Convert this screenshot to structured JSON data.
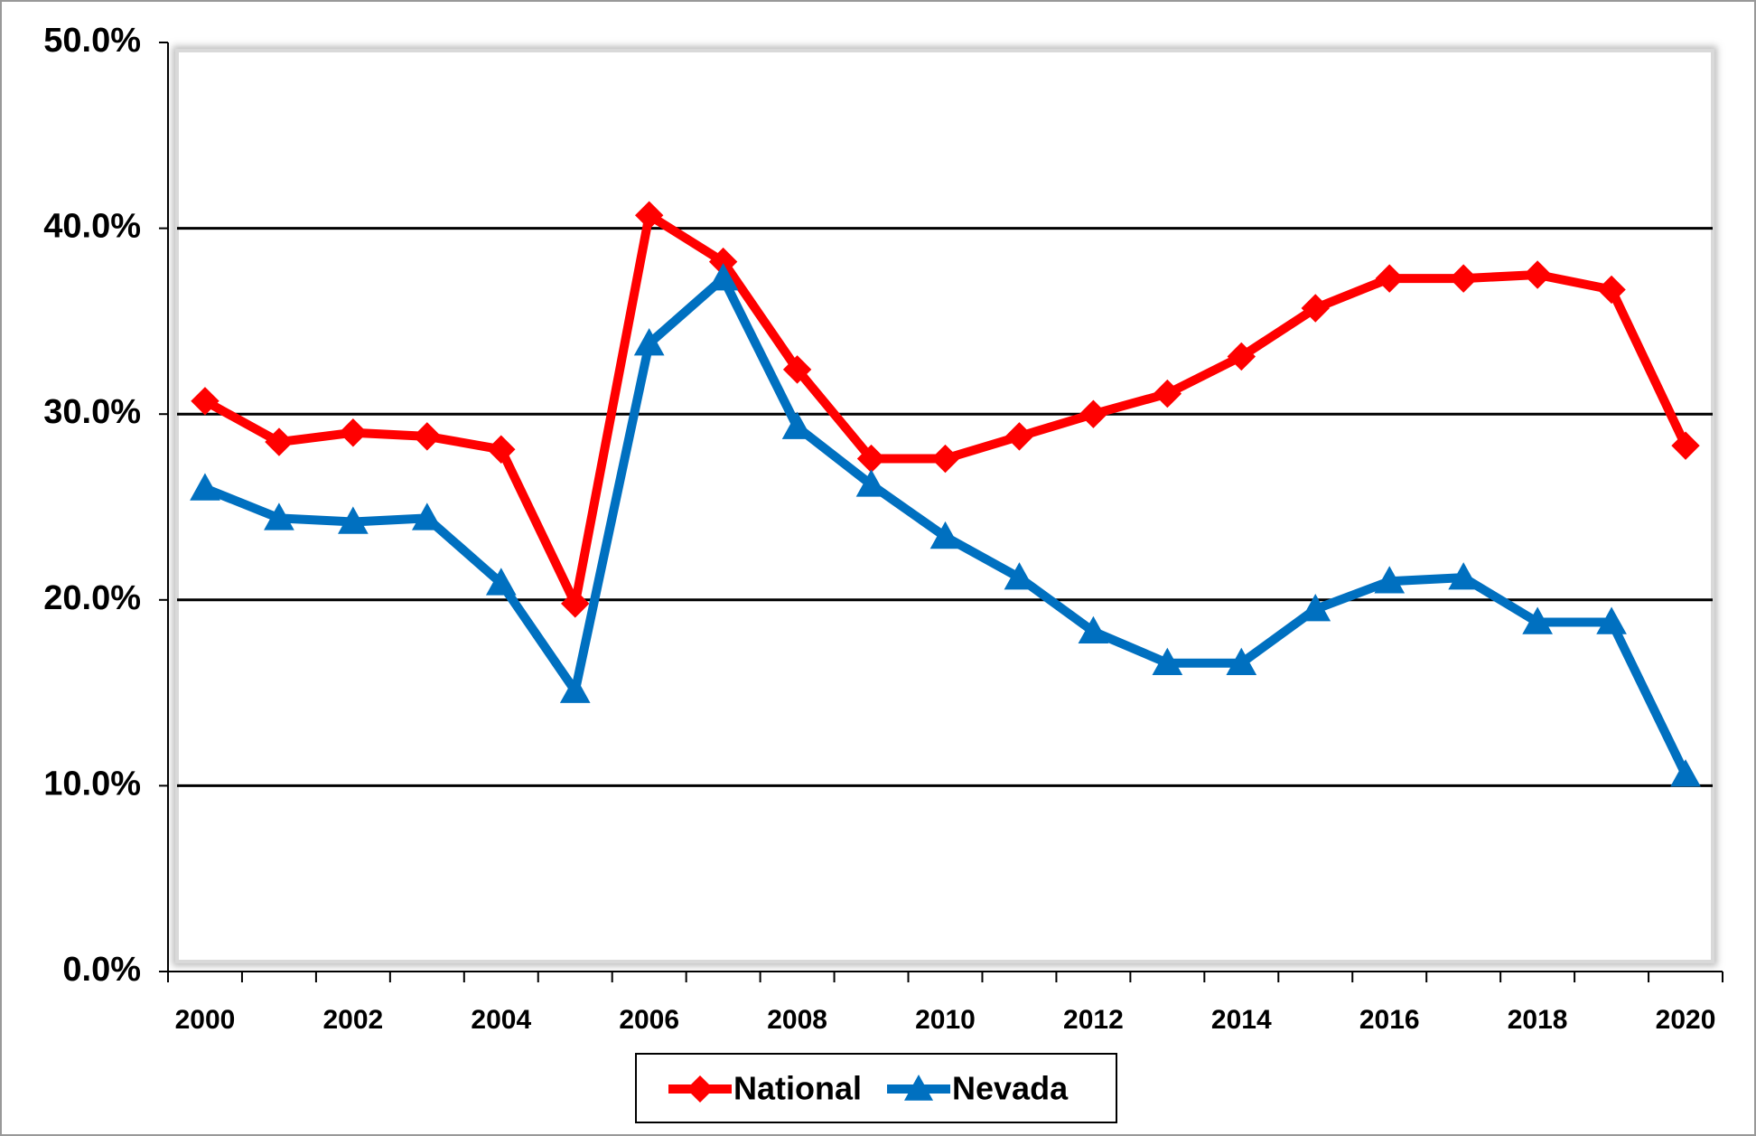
{
  "chart_data": {
    "type": "line",
    "categories": [
      "2000",
      null,
      "2002",
      null,
      "2004",
      null,
      "2006",
      null,
      "2008",
      null,
      "2010",
      null,
      "2012",
      null,
      "2014",
      null,
      "2016",
      null,
      "2018",
      null,
      "2020"
    ],
    "series": [
      {
        "name": "National",
        "color": "#ff0000",
        "marker": "diamond",
        "values": [
          30.7,
          28.5,
          29.0,
          28.8,
          28.1,
          19.8,
          40.7,
          38.2,
          32.4,
          27.6,
          27.6,
          28.8,
          30.0,
          31.1,
          33.1,
          35.7,
          37.3,
          37.3,
          37.5,
          36.7,
          28.3
        ]
      },
      {
        "name": "Nevada",
        "color": "#0070c0",
        "marker": "triangle",
        "values": [
          26.0,
          24.4,
          24.2,
          24.4,
          20.9,
          15.1,
          33.8,
          37.3,
          29.3,
          26.2,
          23.4,
          21.2,
          18.3,
          16.6,
          16.6,
          19.5,
          21.0,
          21.2,
          18.8,
          18.8,
          10.6
        ]
      }
    ],
    "ylim": [
      0,
      50
    ],
    "yticks": [
      {
        "value": 0,
        "label": "0.0%"
      },
      {
        "value": 10,
        "label": "10.0%"
      },
      {
        "value": 20,
        "label": "20.0%"
      },
      {
        "value": 30,
        "label": "30.0%"
      },
      {
        "value": 40,
        "label": "40.0%"
      },
      {
        "value": 50,
        "label": "50.0%"
      }
    ],
    "grid": true,
    "legend": "bottom"
  }
}
